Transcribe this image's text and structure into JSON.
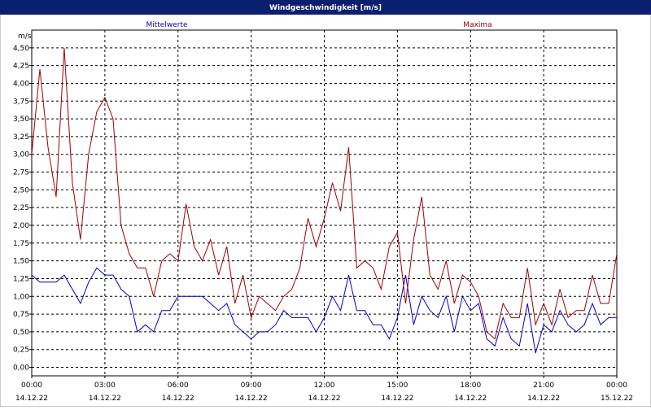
{
  "chart_data": {
    "type": "line",
    "title": "Windgeschwindigkeit [m/s]",
    "y_label": "m/s",
    "x": [
      0,
      20,
      40,
      60,
      80,
      100,
      120,
      140,
      160,
      180,
      200,
      220,
      240,
      260,
      280,
      300,
      320,
      340,
      360,
      380,
      400,
      420,
      440,
      460,
      480,
      500,
      520,
      540,
      560,
      580,
      600,
      620,
      640,
      660,
      680,
      700,
      720,
      740,
      760,
      780,
      800,
      820,
      840,
      860,
      880,
      900,
      920,
      940,
      960,
      980,
      1000,
      1020,
      1040,
      1060,
      1080,
      1100,
      1120,
      1140,
      1160,
      1180,
      1200,
      1220,
      1240,
      1260,
      1280,
      1300,
      1320,
      1340,
      1360,
      1380,
      1400,
      1420,
      1440
    ],
    "series": [
      {
        "name": "Mittelwerte",
        "color": "#0000cc",
        "values": [
          1.3,
          1.2,
          1.2,
          1.2,
          1.3,
          1.1,
          0.9,
          1.2,
          1.4,
          1.3,
          1.3,
          1.1,
          1.0,
          0.5,
          0.6,
          0.5,
          0.8,
          0.8,
          1.0,
          1.0,
          1.0,
          1.0,
          0.9,
          0.8,
          0.9,
          0.6,
          0.5,
          0.4,
          0.5,
          0.5,
          0.6,
          0.8,
          0.7,
          0.7,
          0.7,
          0.5,
          0.7,
          1.0,
          0.8,
          1.3,
          0.8,
          0.8,
          0.6,
          0.6,
          0.4,
          0.7,
          1.3,
          0.6,
          1.0,
          0.8,
          0.7,
          1.0,
          0.5,
          1.0,
          0.8,
          0.9,
          0.4,
          0.3,
          0.7,
          0.4,
          0.3,
          0.9,
          0.2,
          0.6,
          0.5,
          0.8,
          0.6,
          0.5,
          0.6,
          0.9,
          0.6,
          0.7,
          0.7
        ]
      },
      {
        "name": "Maxima",
        "color": "#a00000",
        "values": [
          3.0,
          4.2,
          3.1,
          2.4,
          4.5,
          2.6,
          1.8,
          3.0,
          3.6,
          3.8,
          3.5,
          2.0,
          1.6,
          1.4,
          1.4,
          1.0,
          1.5,
          1.6,
          1.5,
          2.3,
          1.7,
          1.5,
          1.8,
          1.3,
          1.7,
          0.9,
          1.3,
          0.7,
          1.0,
          0.9,
          0.8,
          1.0,
          1.1,
          1.4,
          2.1,
          1.7,
          2.1,
          2.6,
          2.2,
          3.1,
          1.4,
          1.5,
          1.4,
          1.1,
          1.7,
          1.9,
          0.9,
          1.8,
          2.4,
          1.3,
          1.1,
          1.5,
          0.9,
          1.3,
          1.2,
          1.0,
          0.5,
          0.4,
          0.9,
          0.7,
          0.7,
          1.4,
          0.6,
          0.9,
          0.6,
          1.1,
          0.7,
          0.8,
          0.8,
          1.3,
          0.9,
          0.9,
          1.6
        ]
      }
    ],
    "xlim": [
      0,
      1440
    ],
    "xticks": [
      {
        "value": 0,
        "label": "00:00",
        "date": "14.12.22"
      },
      {
        "value": 180,
        "label": "03:00",
        "date": "14.12.22"
      },
      {
        "value": 360,
        "label": "06:00",
        "date": "14.12.22"
      },
      {
        "value": 540,
        "label": "09:00",
        "date": "14.12.22"
      },
      {
        "value": 720,
        "label": "12:00",
        "date": "14.12.22"
      },
      {
        "value": 900,
        "label": "15:00",
        "date": "14.12.22"
      },
      {
        "value": 1080,
        "label": "18:00",
        "date": "14.12.22"
      },
      {
        "value": 1260,
        "label": "21:00",
        "date": "14.12.22"
      },
      {
        "value": 1440,
        "label": "00:00",
        "date": "15.12.22"
      }
    ],
    "ylim": [
      -0.12,
      4.75
    ],
    "yticks": [
      {
        "value": 0,
        "label": "0,00"
      },
      {
        "value": 0.25,
        "label": "0,25"
      },
      {
        "value": 0.5,
        "label": "0,50"
      },
      {
        "value": 0.75,
        "label": "0,75"
      },
      {
        "value": 1,
        "label": "1,00"
      },
      {
        "value": 1.25,
        "label": "1,25"
      },
      {
        "value": 1.5,
        "label": "1,50"
      },
      {
        "value": 1.75,
        "label": "1,75"
      },
      {
        "value": 2,
        "label": "2,00"
      },
      {
        "value": 2.25,
        "label": "2,25"
      },
      {
        "value": 2.5,
        "label": "2,50"
      },
      {
        "value": 2.75,
        "label": "2,75"
      },
      {
        "value": 3,
        "label": "3,00"
      },
      {
        "value": 3.25,
        "label": "3,25"
      },
      {
        "value": 3.5,
        "label": "3,50"
      },
      {
        "value": 3.75,
        "label": "3,75"
      },
      {
        "value": 4,
        "label": "4,00"
      },
      {
        "value": 4.25,
        "label": "4,25"
      },
      {
        "value": 4.5,
        "label": "4,50"
      }
    ],
    "grid": true
  }
}
